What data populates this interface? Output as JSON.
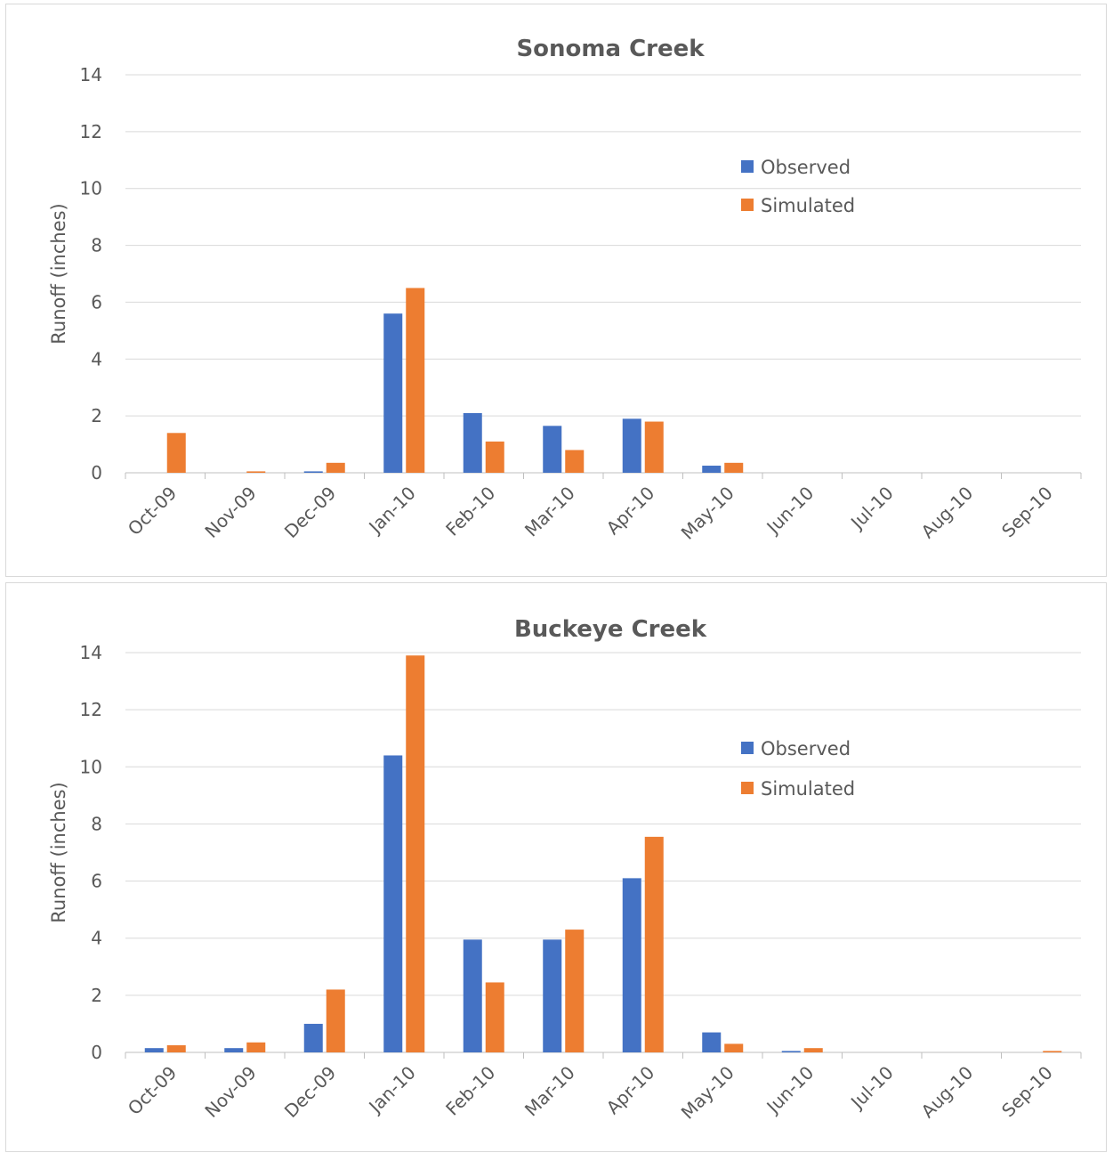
{
  "colors": {
    "observed": "#4472C4",
    "simulated": "#ED7D31",
    "grid": "#d9d9d9",
    "text": "#595959"
  },
  "chart_data": [
    {
      "type": "bar",
      "title": "Sonoma Creek",
      "xlabel": "",
      "ylabel": "Runoff (inches)",
      "ylim": [
        0,
        14
      ],
      "yticks": [
        "0",
        "2",
        "4",
        "6",
        "8",
        "10",
        "12",
        "14"
      ],
      "grid": true,
      "legend": "top-right",
      "categories": [
        "Oct-09",
        "Nov-09",
        "Dec-09",
        "Jan-10",
        "Feb-10",
        "Mar-10",
        "Apr-10",
        "May-10",
        "Jun-10",
        "Jul-10",
        "Aug-10",
        "Sep-10"
      ],
      "series": [
        {
          "name": "Observed",
          "values": [
            0,
            0,
            0.05,
            5.6,
            2.1,
            1.65,
            1.9,
            0.25,
            0,
            0,
            0,
            0
          ]
        },
        {
          "name": "Simulated",
          "values": [
            1.4,
            0.05,
            0.35,
            6.5,
            1.1,
            0.8,
            1.8,
            0.35,
            0,
            0,
            0,
            0
          ]
        }
      ]
    },
    {
      "type": "bar",
      "title": "Buckeye Creek",
      "xlabel": "",
      "ylabel": "Runoff (inches)",
      "ylim": [
        0,
        14
      ],
      "yticks": [
        "0",
        "2",
        "4",
        "6",
        "8",
        "10",
        "12",
        "14"
      ],
      "grid": true,
      "legend": "top-right",
      "categories": [
        "Oct-09",
        "Nov-09",
        "Dec-09",
        "Jan-10",
        "Feb-10",
        "Mar-10",
        "Apr-10",
        "May-10",
        "Jun-10",
        "Jul-10",
        "Aug-10",
        "Sep-10"
      ],
      "series": [
        {
          "name": "Observed",
          "values": [
            0.15,
            0.15,
            1.0,
            10.4,
            3.95,
            3.95,
            6.1,
            0.7,
            0.05,
            0,
            0,
            0
          ]
        },
        {
          "name": "Simulated",
          "values": [
            0.25,
            0.35,
            2.2,
            13.9,
            2.45,
            4.3,
            7.55,
            0.3,
            0.15,
            0,
            0,
            0.05
          ]
        }
      ]
    }
  ]
}
